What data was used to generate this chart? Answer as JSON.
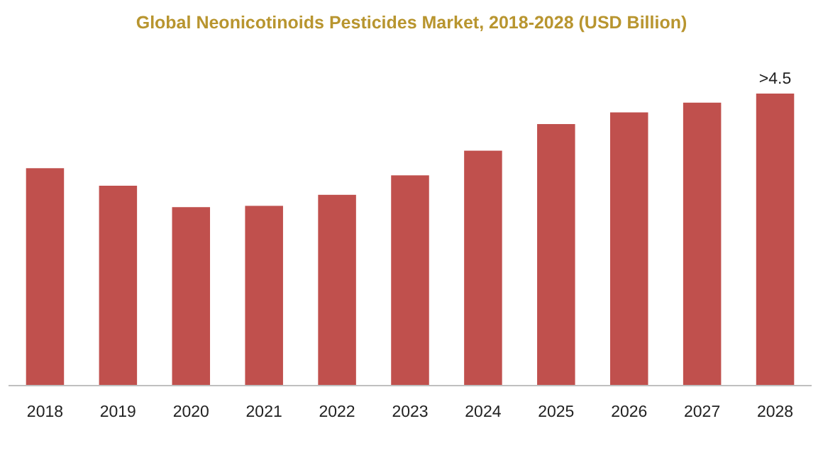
{
  "chart_data": {
    "type": "bar",
    "title": "Global Neonicotinoids Pesticides Market, 2018-2028 (USD Billion)",
    "categories": [
      "2018",
      "2019",
      "2020",
      "2021",
      "2022",
      "2023",
      "2024",
      "2025",
      "2026",
      "2027",
      "2028"
    ],
    "values": [
      3.35,
      3.08,
      2.75,
      2.77,
      2.94,
      3.24,
      3.62,
      4.03,
      4.21,
      4.36,
      4.5
    ],
    "value_labels": [
      null,
      null,
      null,
      null,
      null,
      null,
      null,
      null,
      null,
      null,
      ">4.5"
    ],
    "color": "#c0504d"
  }
}
